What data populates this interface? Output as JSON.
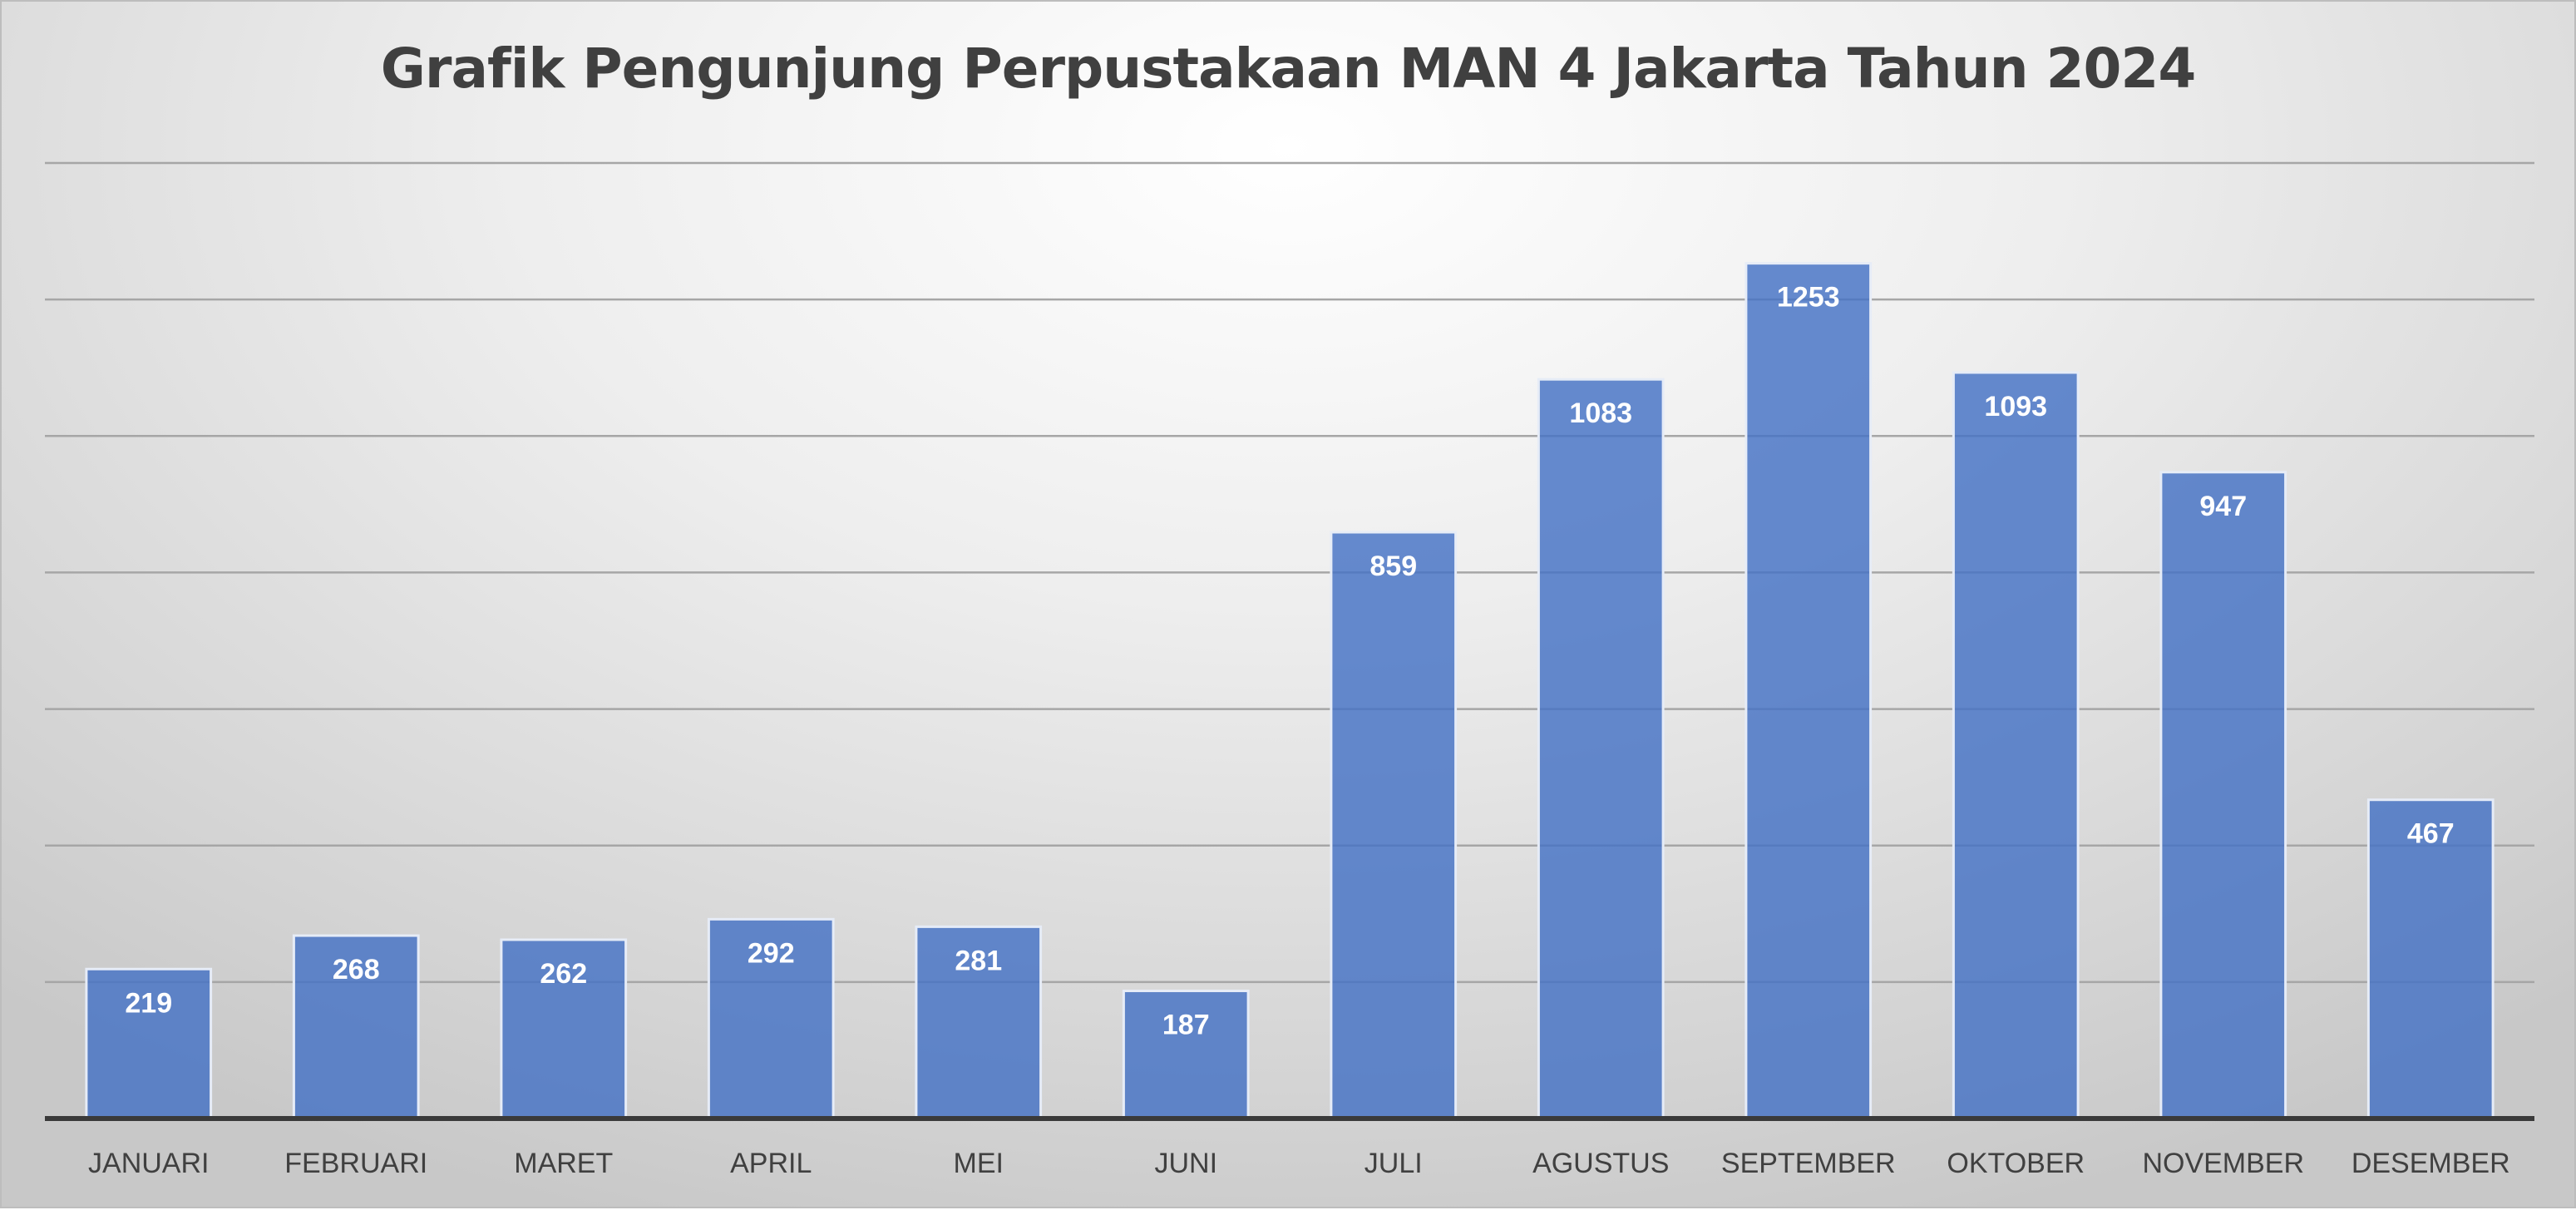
{
  "chart_data": {
    "type": "bar",
    "title": "Grafik Pengunjung Perpustakaan MAN 4 Jakarta Tahun 2024",
    "xlabel": "",
    "ylabel": "",
    "categories": [
      "JANUARI",
      "FEBRUARI",
      "MARET",
      "APRIL",
      "MEI",
      "JUNI",
      "JULI",
      "AGUSTUS",
      "SEPTEMBER",
      "OKTOBER",
      "NOVEMBER",
      "DESEMBER"
    ],
    "values": [
      219,
      268,
      262,
      292,
      281,
      187,
      859,
      1083,
      1253,
      1093,
      947,
      467
    ],
    "ylim": [
      0,
      1400
    ],
    "y_gridlines": [
      200,
      400,
      600,
      800,
      1000,
      1200,
      1400
    ],
    "grid": true,
    "legend": "none",
    "data_labels": "inside-end",
    "colors": {
      "bar": "#4472c4",
      "bar_label": "#ffffff",
      "gridline": "#a6a6a6",
      "axis": "#3a3a3a",
      "text": "#404040"
    }
  }
}
